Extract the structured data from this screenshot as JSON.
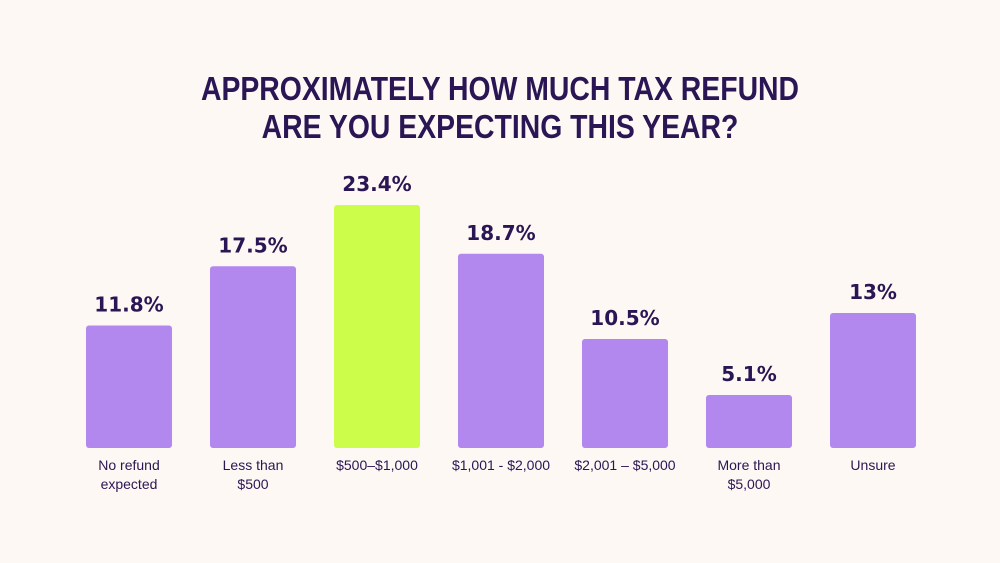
{
  "title_lines": [
    "APPROXIMATELY HOW MUCH TAX REFUND",
    "ARE YOU EXPECTING THIS YEAR?"
  ],
  "chart_data": {
    "type": "bar",
    "title": "APPROXIMATELY HOW MUCH TAX REFUND ARE YOU EXPECTING THIS YEAR?",
    "categories": [
      "No refund expected",
      "Less than $500",
      "$500–$1,000",
      "$1,001 - $2,000",
      "$2,001 – $5,000",
      "More than $5,000",
      "Unsure"
    ],
    "category_lines": [
      [
        "No refund",
        "expected"
      ],
      [
        "Less than",
        "$500"
      ],
      [
        "$500–$1,000"
      ],
      [
        "$1,001 - $2,000"
      ],
      [
        "$2,001 – $5,000"
      ],
      [
        "More than",
        "$5,000"
      ],
      [
        "Unsure"
      ]
    ],
    "values": [
      11.8,
      17.5,
      23.4,
      18.7,
      10.5,
      5.1,
      13
    ],
    "value_labels": [
      "11.8%",
      "17.5%",
      "23.4%",
      "18.7%",
      "10.5%",
      "5.1%",
      "13%"
    ],
    "highlight_index": 2,
    "xlabel": "",
    "ylabel": "",
    "ylim": [
      0,
      23.4
    ],
    "grid": false,
    "legend": "none"
  },
  "colors": {
    "background": "#fdf8f3",
    "bar": "#b287ee",
    "highlight": "#ccfd4b",
    "text": "#2a1654"
  }
}
